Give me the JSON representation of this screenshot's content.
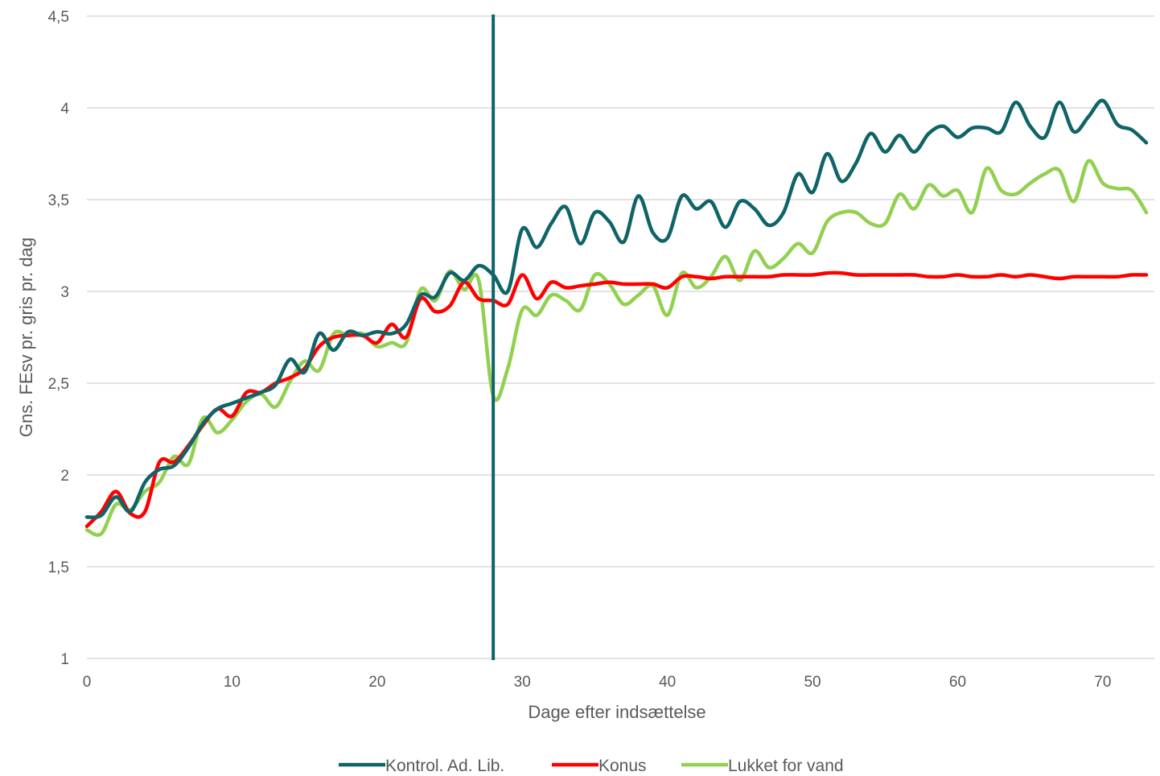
{
  "chart_data": {
    "type": "line",
    "xlabel": "Dage efter indsættelse",
    "ylabel": "Gns. FEsv pr. gris pr. dag",
    "xlim": [
      0,
      73
    ],
    "ylim": [
      1,
      4.5
    ],
    "x_ticks": [
      0,
      10,
      20,
      30,
      40,
      50,
      60,
      70
    ],
    "x_tick_labels": [
      "0",
      "10",
      "20",
      "30",
      "40",
      "50",
      "60",
      "70"
    ],
    "y_ticks": [
      1,
      1.5,
      2,
      2.5,
      3,
      3.5,
      4,
      4.5
    ],
    "y_tick_labels": [
      "1",
      "1,5",
      "2",
      "2,5",
      "3",
      "3,5",
      "4",
      "4,5"
    ],
    "grid": "horizontal",
    "legend_position": "bottom",
    "vertical_marker": {
      "x": 28,
      "color": "#0f6468"
    },
    "x": [
      0,
      1,
      2,
      3,
      4,
      5,
      6,
      7,
      8,
      9,
      10,
      11,
      12,
      13,
      14,
      15,
      16,
      17,
      18,
      19,
      20,
      21,
      22,
      23,
      24,
      25,
      26,
      27,
      28,
      29,
      30,
      31,
      32,
      33,
      34,
      35,
      36,
      37,
      38,
      39,
      40,
      41,
      42,
      43,
      44,
      45,
      46,
      47,
      48,
      49,
      50,
      51,
      52,
      53,
      54,
      55,
      56,
      57,
      58,
      59,
      60,
      61,
      62,
      63,
      64,
      65,
      66,
      67,
      68,
      69,
      70,
      71,
      72,
      73
    ],
    "series": [
      {
        "name": "Kontrol. Ad. Lib.",
        "color": "#0f6468",
        "values": [
          1.77,
          1.78,
          1.88,
          1.8,
          1.96,
          2.03,
          2.05,
          2.15,
          2.28,
          2.36,
          2.39,
          2.42,
          2.45,
          2.49,
          2.63,
          2.56,
          2.77,
          2.68,
          2.78,
          2.76,
          2.78,
          2.77,
          2.82,
          2.98,
          2.97,
          3.1,
          3.06,
          3.14,
          3.09,
          3.0,
          3.34,
          3.24,
          3.37,
          3.46,
          3.26,
          3.43,
          3.38,
          3.27,
          3.52,
          3.32,
          3.29,
          3.52,
          3.45,
          3.49,
          3.35,
          3.49,
          3.45,
          3.36,
          3.43,
          3.64,
          3.54,
          3.75,
          3.6,
          3.7,
          3.86,
          3.76,
          3.85,
          3.76,
          3.86,
          3.9,
          3.84,
          3.89,
          3.89,
          3.87,
          4.03,
          3.9,
          3.84,
          4.03,
          3.87,
          3.95,
          4.04,
          3.91,
          3.88,
          3.81
        ]
      },
      {
        "name": "Konus",
        "color": "#ff0000",
        "values": [
          1.72,
          1.8,
          1.91,
          1.79,
          1.8,
          2.07,
          2.07,
          2.16,
          2.27,
          2.36,
          2.32,
          2.45,
          2.45,
          2.5,
          2.53,
          2.58,
          2.7,
          2.75,
          2.76,
          2.76,
          2.72,
          2.82,
          2.75,
          2.96,
          2.89,
          2.92,
          3.05,
          2.96,
          2.95,
          2.93,
          3.09,
          2.96,
          3.05,
          3.02,
          3.03,
          3.04,
          3.05,
          3.04,
          3.04,
          3.04,
          3.02,
          3.08,
          3.08,
          3.07,
          3.08,
          3.08,
          3.08,
          3.08,
          3.09,
          3.09,
          3.09,
          3.1,
          3.1,
          3.09,
          3.09,
          3.09,
          3.09,
          3.09,
          3.08,
          3.08,
          3.09,
          3.08,
          3.08,
          3.09,
          3.08,
          3.09,
          3.08,
          3.07,
          3.08,
          3.08,
          3.08,
          3.08,
          3.09,
          3.09
        ]
      },
      {
        "name": "Lukket for vand",
        "color": "#92d050",
        "values": [
          1.7,
          1.68,
          1.84,
          1.81,
          1.91,
          1.96,
          2.1,
          2.06,
          2.31,
          2.23,
          2.3,
          2.4,
          2.44,
          2.37,
          2.51,
          2.62,
          2.57,
          2.77,
          2.76,
          2.77,
          2.7,
          2.72,
          2.72,
          3.01,
          2.95,
          3.11,
          3.01,
          3.06,
          2.43,
          2.58,
          2.9,
          2.87,
          2.98,
          2.95,
          2.9,
          3.09,
          3.04,
          2.93,
          2.98,
          3.03,
          2.87,
          3.1,
          3.02,
          3.08,
          3.19,
          3.06,
          3.22,
          3.13,
          3.18,
          3.26,
          3.21,
          3.38,
          3.43,
          3.43,
          3.37,
          3.37,
          3.53,
          3.45,
          3.58,
          3.52,
          3.55,
          3.43,
          3.67,
          3.55,
          3.53,
          3.59,
          3.64,
          3.66,
          3.49,
          3.71,
          3.59,
          3.56,
          3.55,
          3.43
        ]
      }
    ]
  }
}
